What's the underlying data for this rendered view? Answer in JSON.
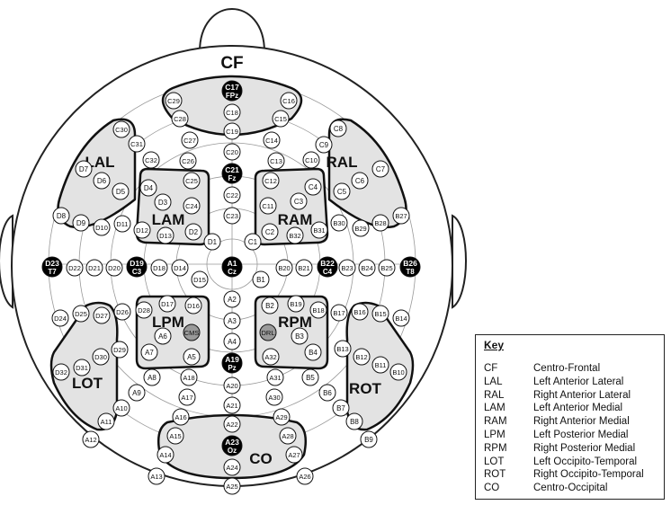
{
  "regions": {
    "CF": "CF",
    "LAL": "LAL",
    "RAL": "RAL",
    "LAM": "LAM",
    "RAM": "RAM",
    "LPM": "LPM",
    "RPM": "RPM",
    "LOT": "LOT",
    "ROT": "ROT",
    "CO": "CO"
  },
  "electrodes": [
    {
      "id": "C17",
      "sub": "FPz",
      "style": "black"
    },
    {
      "id": "C29",
      "style": "white"
    },
    {
      "id": "C16",
      "style": "white"
    },
    {
      "id": "C18",
      "style": "white"
    },
    {
      "id": "C28",
      "style": "white"
    },
    {
      "id": "C15",
      "style": "white"
    },
    {
      "id": "C19",
      "style": "white"
    },
    {
      "id": "C27",
      "style": "white"
    },
    {
      "id": "C14",
      "style": "white"
    },
    {
      "id": "C30",
      "style": "white"
    },
    {
      "id": "C31",
      "style": "white"
    },
    {
      "id": "C8",
      "style": "white"
    },
    {
      "id": "C9",
      "style": "white"
    },
    {
      "id": "C20",
      "style": "white"
    },
    {
      "id": "C26",
      "style": "white"
    },
    {
      "id": "C13",
      "style": "white"
    },
    {
      "id": "C32",
      "style": "white"
    },
    {
      "id": "C10",
      "style": "white"
    },
    {
      "id": "D7",
      "style": "white"
    },
    {
      "id": "D6",
      "style": "white"
    },
    {
      "id": "C7",
      "style": "white"
    },
    {
      "id": "C6",
      "style": "white"
    },
    {
      "id": "C21",
      "sub": "Fz",
      "style": "black"
    },
    {
      "id": "C25",
      "style": "white"
    },
    {
      "id": "C12",
      "style": "white"
    },
    {
      "id": "D4",
      "style": "white"
    },
    {
      "id": "C4",
      "style": "white"
    },
    {
      "id": "D5",
      "style": "white"
    },
    {
      "id": "C5",
      "style": "white"
    },
    {
      "id": "C22",
      "style": "white"
    },
    {
      "id": "D3",
      "style": "white"
    },
    {
      "id": "C3",
      "style": "white"
    },
    {
      "id": "C24",
      "style": "white"
    },
    {
      "id": "C11",
      "style": "white"
    },
    {
      "id": "D8",
      "style": "white"
    },
    {
      "id": "B27",
      "style": "white"
    },
    {
      "id": "C23",
      "style": "white"
    },
    {
      "id": "D9",
      "style": "white"
    },
    {
      "id": "B28",
      "style": "white"
    },
    {
      "id": "D10",
      "style": "white"
    },
    {
      "id": "D11",
      "style": "white"
    },
    {
      "id": "D12",
      "style": "white"
    },
    {
      "id": "D13",
      "style": "white"
    },
    {
      "id": "D2",
      "style": "white"
    },
    {
      "id": "C2",
      "style": "white"
    },
    {
      "id": "B32",
      "style": "white"
    },
    {
      "id": "B31",
      "style": "white"
    },
    {
      "id": "B30",
      "style": "white"
    },
    {
      "id": "B29",
      "style": "white"
    },
    {
      "id": "D1",
      "style": "white"
    },
    {
      "id": "C1",
      "style": "white"
    },
    {
      "id": "D23",
      "sub": "T7",
      "style": "black"
    },
    {
      "id": "D22",
      "style": "white"
    },
    {
      "id": "D21",
      "style": "white"
    },
    {
      "id": "D20",
      "style": "white"
    },
    {
      "id": "D19",
      "sub": "C3",
      "style": "black"
    },
    {
      "id": "D18",
      "style": "white"
    },
    {
      "id": "D14",
      "style": "white"
    },
    {
      "id": "A1",
      "sub": "Cz",
      "style": "black"
    },
    {
      "id": "B20",
      "style": "white"
    },
    {
      "id": "B21",
      "style": "white"
    },
    {
      "id": "B22",
      "sub": "C4",
      "style": "black"
    },
    {
      "id": "B23",
      "style": "white"
    },
    {
      "id": "B24",
      "style": "white"
    },
    {
      "id": "B25",
      "style": "white"
    },
    {
      "id": "B26",
      "sub": "T8",
      "style": "black"
    },
    {
      "id": "D15",
      "style": "white"
    },
    {
      "id": "B1",
      "style": "white"
    },
    {
      "id": "A2",
      "style": "white"
    },
    {
      "id": "D17",
      "style": "white"
    },
    {
      "id": "D16",
      "style": "white"
    },
    {
      "id": "D28",
      "style": "white"
    },
    {
      "id": "B2",
      "style": "white"
    },
    {
      "id": "B19",
      "style": "white"
    },
    {
      "id": "B18",
      "style": "white"
    },
    {
      "id": "D27",
      "style": "white"
    },
    {
      "id": "D26",
      "style": "white"
    },
    {
      "id": "D25",
      "style": "white"
    },
    {
      "id": "D24",
      "style": "white"
    },
    {
      "id": "B17",
      "style": "white"
    },
    {
      "id": "B16",
      "style": "white"
    },
    {
      "id": "B15",
      "style": "white"
    },
    {
      "id": "B14",
      "style": "white"
    },
    {
      "id": "A3",
      "style": "white"
    },
    {
      "id": "A6",
      "style": "white"
    },
    {
      "id": "CMS",
      "style": "grey"
    },
    {
      "id": "DRL",
      "style": "grey"
    },
    {
      "id": "B3",
      "style": "white"
    },
    {
      "id": "A4",
      "style": "white"
    },
    {
      "id": "D29",
      "style": "white"
    },
    {
      "id": "B13",
      "style": "white"
    },
    {
      "id": "A7",
      "style": "white"
    },
    {
      "id": "A5",
      "style": "white"
    },
    {
      "id": "A32",
      "style": "white"
    },
    {
      "id": "B4",
      "style": "white"
    },
    {
      "id": "D30",
      "style": "white"
    },
    {
      "id": "B12",
      "style": "white"
    },
    {
      "id": "A19",
      "sub": "Pz",
      "style": "black"
    },
    {
      "id": "D31",
      "style": "white"
    },
    {
      "id": "A8",
      "style": "white"
    },
    {
      "id": "A18",
      "style": "white"
    },
    {
      "id": "A31",
      "style": "white"
    },
    {
      "id": "B5",
      "style": "white"
    },
    {
      "id": "B11",
      "style": "white"
    },
    {
      "id": "D32",
      "style": "white"
    },
    {
      "id": "B10",
      "style": "white"
    },
    {
      "id": "A20",
      "style": "white"
    },
    {
      "id": "A9",
      "style": "white"
    },
    {
      "id": "B6",
      "style": "white"
    },
    {
      "id": "A17",
      "style": "white"
    },
    {
      "id": "A30",
      "style": "white"
    },
    {
      "id": "A10",
      "style": "white"
    },
    {
      "id": "B7",
      "style": "white"
    },
    {
      "id": "A21",
      "style": "white"
    },
    {
      "id": "A16",
      "style": "white"
    },
    {
      "id": "A29",
      "style": "white"
    },
    {
      "id": "A11",
      "style": "white"
    },
    {
      "id": "B8",
      "style": "white"
    },
    {
      "id": "A22",
      "style": "white"
    },
    {
      "id": "A12",
      "style": "white"
    },
    {
      "id": "B9",
      "style": "white"
    },
    {
      "id": "A15",
      "style": "white"
    },
    {
      "id": "A28",
      "style": "white"
    },
    {
      "id": "A23",
      "sub": "Oz",
      "style": "black"
    },
    {
      "id": "A14",
      "style": "white"
    },
    {
      "id": "A27",
      "style": "white"
    },
    {
      "id": "A24",
      "style": "white"
    },
    {
      "id": "A13",
      "style": "white"
    },
    {
      "id": "A26",
      "style": "white"
    },
    {
      "id": "A25",
      "style": "white"
    }
  ],
  "key": {
    "title": "Key",
    "rows": [
      {
        "abbr": "CF",
        "desc": "Centro-Frontal"
      },
      {
        "abbr": "LAL",
        "desc": "Left Anterior Lateral"
      },
      {
        "abbr": "RAL",
        "desc": "Right Anterior Lateral"
      },
      {
        "abbr": "LAM",
        "desc": "Left Anterior Medial"
      },
      {
        "abbr": "RAM",
        "desc": "Right Anterior Medial"
      },
      {
        "abbr": "LPM",
        "desc": "Left Posterior Medial"
      },
      {
        "abbr": "RPM",
        "desc": "Right Posterior Medial"
      },
      {
        "abbr": "LOT",
        "desc": "Left Occipito-Temporal"
      },
      {
        "abbr": "ROT",
        "desc": "Right Occipito-Temporal"
      },
      {
        "abbr": "CO",
        "desc": "Centro-Occipital"
      }
    ]
  }
}
